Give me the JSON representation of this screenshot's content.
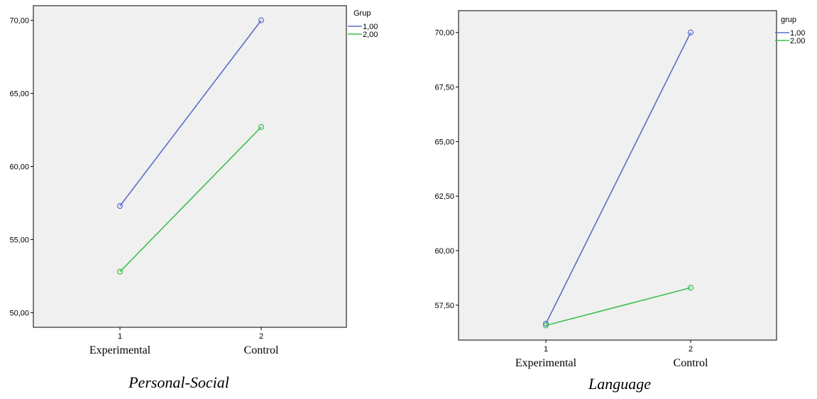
{
  "chart_data": [
    {
      "type": "line",
      "title": "Personal-Social",
      "x_ticks": [
        "1",
        "2"
      ],
      "categories": [
        "Experimental",
        "Control"
      ],
      "ylim": [
        49,
        71
      ],
      "y_ticks": [
        "50,00",
        "55,00",
        "60,00",
        "65,00",
        "70,00"
      ],
      "y_tick_values": [
        50,
        55,
        60,
        65,
        70
      ],
      "grid": false,
      "legend": {
        "title": "Grup",
        "placement": "top-right"
      },
      "series": [
        {
          "name": "1,00",
          "color": "#5b6ec9",
          "values": [
            57.3,
            70.0
          ]
        },
        {
          "name": "2,00",
          "color": "#3dbf4e",
          "values": [
            52.8,
            62.7
          ]
        }
      ]
    },
    {
      "type": "line",
      "title": "Language",
      "x_ticks": [
        "1",
        "2"
      ],
      "categories": [
        "Experimental",
        "Control"
      ],
      "ylim": [
        55.9,
        71.0
      ],
      "y_ticks": [
        "57,50",
        "60,00",
        "62,50",
        "65,00",
        "67,50",
        "70,00"
      ],
      "y_tick_values": [
        57.5,
        60,
        62.5,
        65,
        67.5,
        70
      ],
      "grid": false,
      "legend": {
        "title": "grup",
        "placement": "top-right"
      },
      "series": [
        {
          "name": "1,00",
          "color": "#5b6ec9",
          "values": [
            56.65,
            70.0
          ]
        },
        {
          "name": "2,00",
          "color": "#3dbf4e",
          "values": [
            56.57,
            58.3
          ]
        }
      ]
    }
  ]
}
